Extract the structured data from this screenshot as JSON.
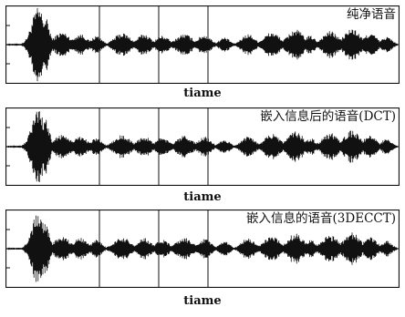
{
  "chart_data": [
    {
      "type": "line",
      "title": "纯净语音",
      "xlabel": "tiame",
      "ylabel": "",
      "grid": false,
      "legend": "none",
      "color": "#111111"
    },
    {
      "type": "line",
      "title": "嵌入信息后的语音(DCT)",
      "xlabel": "tiame",
      "ylabel": "",
      "grid": false,
      "legend": "none",
      "color": "#111111"
    },
    {
      "type": "line",
      "title": "嵌入信息的语音(3DECCT)",
      "xlabel": "tiame",
      "ylabel": "",
      "grid": false,
      "legend": "none",
      "color": "#111111"
    }
  ]
}
